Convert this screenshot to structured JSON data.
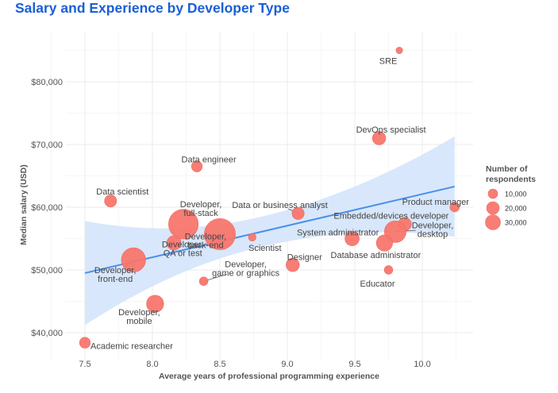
{
  "chart_data": {
    "type": "scatter",
    "title": "Salary and Experience by Developer Type",
    "xlabel": "Average years of professional programming experience",
    "ylabel": "Median salary (USD)",
    "xlim": [
      7.43,
      10.33
    ],
    "ylim": [
      38000,
      86000
    ],
    "x_ticks": [
      7.5,
      8.0,
      8.5,
      9.0,
      9.5,
      10.0
    ],
    "x_tick_labels": [
      "7.5",
      "8.0",
      "8.5",
      "9.0",
      "9.5",
      "10.0"
    ],
    "y_ticks": [
      40000,
      50000,
      60000,
      70000,
      80000
    ],
    "y_tick_labels": [
      "$40,000",
      "$50,000",
      "$60,000",
      "$70,000",
      "$80,000"
    ],
    "grid": true,
    "point_color": "#f8766d",
    "trend_color": "#4a90e8",
    "ribbon_color": "#d6e6fb",
    "points": [
      {
        "name": "SRE",
        "x": 9.83,
        "y": 85000,
        "respondents": 1500,
        "label_lines": [
          "SRE"
        ]
      },
      {
        "name": "DevOps specialist",
        "x": 9.68,
        "y": 71000,
        "respondents": 6000,
        "label_lines": [
          "DevOps specialist"
        ]
      },
      {
        "name": "Data engineer",
        "x": 8.33,
        "y": 66500,
        "respondents": 4000,
        "label_lines": [
          "Data engineer"
        ]
      },
      {
        "name": "Data scientist",
        "x": 7.69,
        "y": 61000,
        "respondents": 5000,
        "label_lines": [
          "Data scientist"
        ]
      },
      {
        "name": "Product manager",
        "x": 10.24,
        "y": 60000,
        "respondents": 3000,
        "label_lines": [
          "Product manager"
        ]
      },
      {
        "name": "Data or business analyst",
        "x": 9.08,
        "y": 59000,
        "respondents": 5000,
        "label_lines": [
          "Data or business analyst"
        ]
      },
      {
        "name": "Developer, full-stack",
        "x": 8.23,
        "y": 57300,
        "respondents": 30000,
        "label_lines": [
          "Developer,",
          "full-stack"
        ]
      },
      {
        "name": "Embedded/devices developer",
        "x": 9.87,
        "y": 57300,
        "respondents": 6000,
        "label_lines": [
          "Embedded/devices developer"
        ]
      },
      {
        "name": "Developer, desktop",
        "x": 9.8,
        "y": 56100,
        "respondents": 16000,
        "label_lines": [
          "Developer,",
          "desktop"
        ]
      },
      {
        "name": "Developer, back-end",
        "x": 8.5,
        "y": 55700,
        "respondents": 33000,
        "label_lines": [
          "Developer,",
          "back-end"
        ]
      },
      {
        "name": "Scientist",
        "x": 8.74,
        "y": 55200,
        "respondents": 2000,
        "label_lines": [
          "Scientist"
        ]
      },
      {
        "name": "System administrator",
        "x": 9.48,
        "y": 55000,
        "respondents": 7000,
        "label_lines": [
          "System administrator"
        ]
      },
      {
        "name": "Developer, QA or test",
        "x": 8.16,
        "y": 54300,
        "respondents": 7000,
        "label_lines": [
          "Developer,",
          "QA or test"
        ]
      },
      {
        "name": "Database administrator",
        "x": 9.72,
        "y": 54300,
        "respondents": 9000,
        "label_lines": [
          "Database administrator"
        ]
      },
      {
        "name": "Developer, front-end",
        "x": 7.86,
        "y": 51600,
        "respondents": 20000,
        "label_lines": [
          "Developer,",
          "front-end"
        ]
      },
      {
        "name": "Designer",
        "x": 9.04,
        "y": 50800,
        "respondents": 6000,
        "label_lines": [
          "Designer"
        ]
      },
      {
        "name": "Educator",
        "x": 9.75,
        "y": 50000,
        "respondents": 2500,
        "label_lines": [
          "Educator"
        ]
      },
      {
        "name": "Developer, game or graphics",
        "x": 8.38,
        "y": 48200,
        "respondents": 2500,
        "label_lines": [
          "Developer,",
          "game or graphics"
        ]
      },
      {
        "name": "Developer, mobile",
        "x": 8.02,
        "y": 44600,
        "respondents": 10000,
        "label_lines": [
          "Developer,",
          "mobile"
        ]
      },
      {
        "name": "Academic researcher",
        "x": 7.5,
        "y": 38400,
        "respondents": 4000,
        "label_lines": [
          "Academic researcher"
        ]
      }
    ],
    "trend_line": {
      "x": [
        7.5,
        10.24
      ],
      "y": [
        49500,
        63300
      ],
      "ribbon_upper": [
        57800,
        71300
      ],
      "ribbon_lower": [
        41300,
        55500
      ]
    },
    "legend": {
      "title_lines": [
        "Number of",
        "respondents"
      ],
      "entries": [
        {
          "label": "10,000",
          "respondents": 10000
        },
        {
          "label": "20,000",
          "respondents": 20000
        },
        {
          "label": "30,000",
          "respondents": 30000
        }
      ],
      "position": "right"
    }
  }
}
